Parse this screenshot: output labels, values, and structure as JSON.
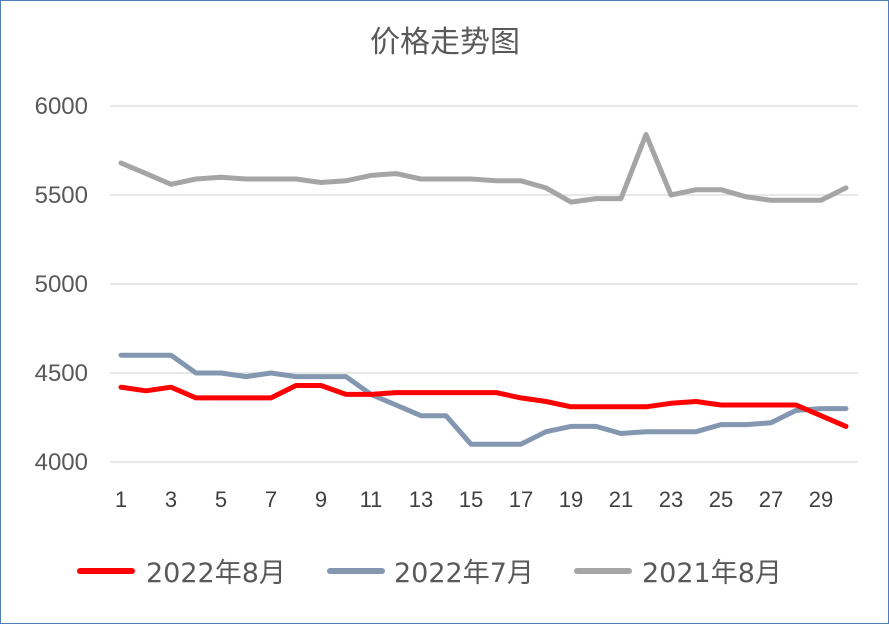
{
  "chart_data": {
    "type": "line",
    "title": "价格走势图",
    "xlabel": "",
    "ylabel": "",
    "ylim": [
      4000,
      6000
    ],
    "yticks": [
      4000,
      4500,
      5000,
      5500,
      6000
    ],
    "x": [
      1,
      2,
      3,
      4,
      5,
      6,
      7,
      8,
      9,
      10,
      11,
      12,
      13,
      14,
      15,
      16,
      17,
      18,
      19,
      20,
      21,
      22,
      23,
      24,
      25,
      26,
      27,
      28,
      29,
      30
    ],
    "xticks": [
      1,
      3,
      5,
      7,
      9,
      11,
      13,
      15,
      17,
      19,
      21,
      23,
      25,
      27,
      29
    ],
    "legend_position": "bottom",
    "series": [
      {
        "name": "2022年8月",
        "color": "#ff0000",
        "values": [
          4420,
          4400,
          4420,
          4360,
          4360,
          4360,
          4360,
          4430,
          4430,
          4380,
          4380,
          4390,
          4390,
          4390,
          4390,
          4390,
          4360,
          4340,
          4310,
          4310,
          4310,
          4310,
          4330,
          4340,
          4320,
          4320,
          4320,
          4320,
          4260,
          4200
        ]
      },
      {
        "name": "2022年7月",
        "color": "#8497b0",
        "values": [
          4600,
          4600,
          4600,
          4500,
          4500,
          4480,
          4500,
          4480,
          4480,
          4480,
          4380,
          4320,
          4260,
          4260,
          4100,
          4100,
          4100,
          4170,
          4200,
          4200,
          4160,
          4170,
          4170,
          4170,
          4210,
          4210,
          4220,
          4290,
          4300,
          4300
        ]
      },
      {
        "name": "2021年8月",
        "color": "#a5a5a5",
        "values": [
          5680,
          5620,
          5560,
          5590,
          5600,
          5590,
          5590,
          5590,
          5570,
          5580,
          5610,
          5620,
          5590,
          5590,
          5590,
          5580,
          5580,
          5540,
          5460,
          5480,
          5480,
          5840,
          5500,
          5530,
          5530,
          5490,
          5470,
          5470,
          5470,
          5540
        ]
      }
    ]
  }
}
